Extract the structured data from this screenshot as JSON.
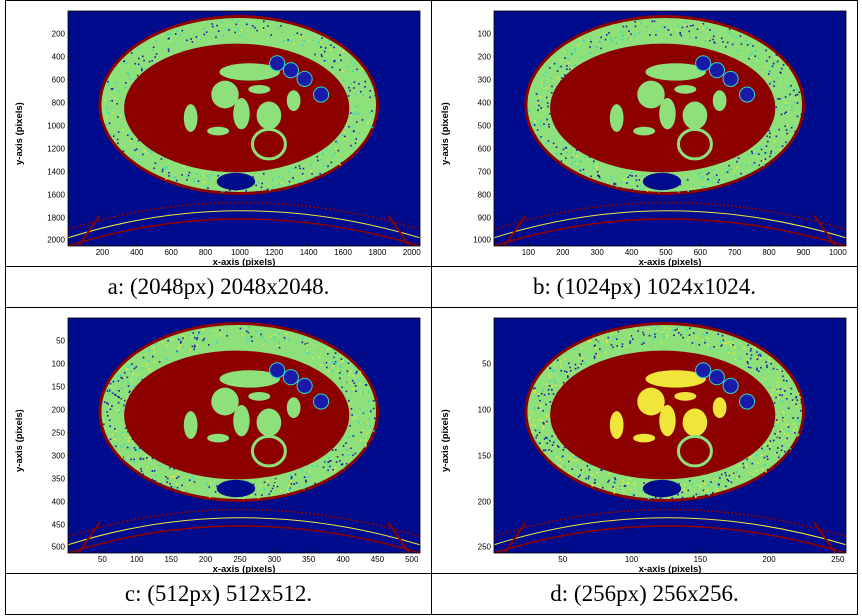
{
  "panels": [
    {
      "id": "a",
      "caption": "a: (2048px) 2048x2048.",
      "xlabel": "x-axis (pixels)",
      "ylabel": "y-axis (pixels)",
      "xlim": [
        0,
        2048
      ],
      "ylim": [
        0,
        2048
      ],
      "xticks": [
        "200",
        "400",
        "600",
        "800",
        "1000",
        "1200",
        "1400",
        "1600",
        "1800",
        "2000"
      ],
      "yticks": [
        "200",
        "400",
        "600",
        "800",
        "1000",
        "1200",
        "1400",
        "1600",
        "1800",
        "2000"
      ],
      "noise": 0.1
    },
    {
      "id": "b",
      "caption": "b: (1024px) 1024x1024.",
      "xlabel": "x-axis (pixels)",
      "ylabel": "y-axis (pixels)",
      "xlim": [
        0,
        1024
      ],
      "ylim": [
        0,
        1024
      ],
      "xticks": [
        "100",
        "200",
        "300",
        "400",
        "500",
        "600",
        "700",
        "800",
        "900",
        "1000"
      ],
      "yticks": [
        "100",
        "200",
        "300",
        "400",
        "500",
        "600",
        "700",
        "800",
        "900",
        "1000"
      ],
      "noise": 0.16
    },
    {
      "id": "c",
      "caption": "c: (512px) 512x512.",
      "xlabel": "x-axis (pixels)",
      "ylabel": "y-axis (pixels)",
      "xlim": [
        0,
        512
      ],
      "ylim": [
        0,
        512
      ],
      "xticks": [
        "50",
        "100",
        "150",
        "200",
        "250",
        "300",
        "350",
        "400",
        "450",
        "500"
      ],
      "yticks": [
        "50",
        "100",
        "150",
        "200",
        "250",
        "300",
        "350",
        "400",
        "450",
        "500"
      ],
      "noise": 0.25
    },
    {
      "id": "d",
      "caption": "d: (256px) 256x256.",
      "xlabel": "x-axis (pixels)",
      "ylabel": "y-axis (pixels)",
      "xlim": [
        0,
        256
      ],
      "ylim": [
        0,
        256
      ],
      "xticks": [
        "50",
        "100",
        "150",
        "200",
        "250"
      ],
      "yticks": [
        "50",
        "100",
        "150",
        "200",
        "250"
      ],
      "noise": 0.38
    }
  ],
  "colors": {
    "background": "#000c8c",
    "interior": "#8c0000",
    "fat_cyan": "#33d7c8",
    "fat_green": "#8ee07a",
    "fat_yellow": "#f0e63a",
    "dark_blue": "#1a1aa8"
  }
}
